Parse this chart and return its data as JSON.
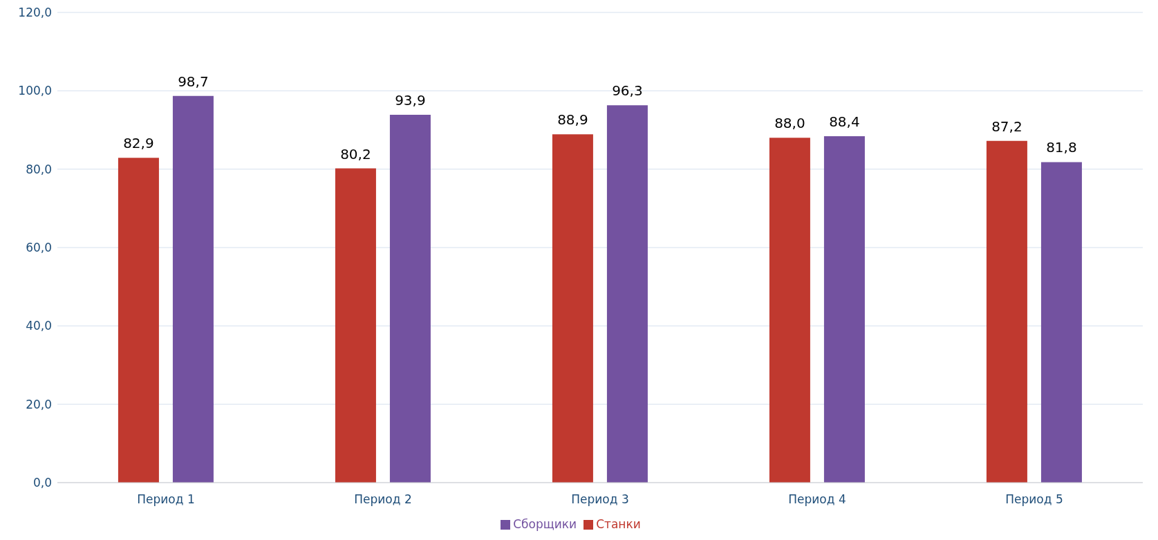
{
  "chart_data": {
    "type": "bar",
    "categories": [
      "Период 1",
      "Период 2",
      "Период 3",
      "Период 4",
      "Период 5"
    ],
    "series": [
      {
        "name": "Станки",
        "color": "#c0392f",
        "values": [
          82.9,
          80.2,
          88.9,
          88.0,
          87.2
        ],
        "value_labels": [
          "82,9",
          "80,2",
          "88,9",
          "88,0",
          "87,2"
        ]
      },
      {
        "name": "Сборщики",
        "color": "#7352a0",
        "values": [
          98.7,
          93.9,
          96.3,
          88.4,
          81.8
        ],
        "value_labels": [
          "98,7",
          "93,9",
          "96,3",
          "88,4",
          "81,8"
        ]
      }
    ],
    "ylim": [
      0,
      120
    ],
    "yticks": [
      {
        "value": 0,
        "label": "0,0"
      },
      {
        "value": 20,
        "label": "20,0"
      },
      {
        "value": 40,
        "label": "40,0"
      },
      {
        "value": 60,
        "label": "60,0"
      },
      {
        "value": 80,
        "label": "80,0"
      },
      {
        "value": 100,
        "label": "100,0"
      },
      {
        "value": 120,
        "label": "120,0"
      }
    ],
    "grid": "y",
    "legend": "bottom"
  }
}
